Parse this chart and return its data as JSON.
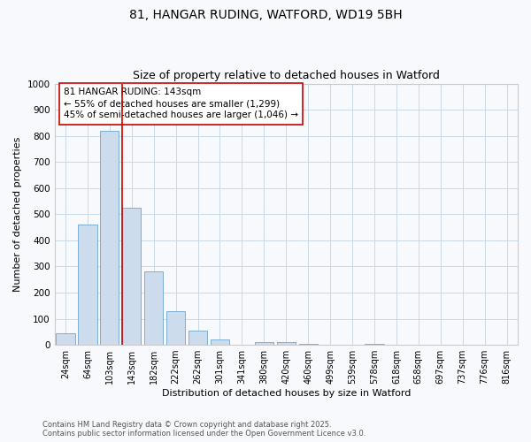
{
  "title_line1": "81, HANGAR RUDING, WATFORD, WD19 5BH",
  "title_line2": "Size of property relative to detached houses in Watford",
  "xlabel": "Distribution of detached houses by size in Watford",
  "ylabel": "Number of detached properties",
  "footnote1": "Contains HM Land Registry data © Crown copyright and database right 2025.",
  "footnote2": "Contains public sector information licensed under the Open Government Licence v3.0.",
  "annotation_line1": "81 HANGAR RUDING: 143sqm",
  "annotation_line2": "← 55% of detached houses are smaller (1,299)",
  "annotation_line3": "45% of semi-detached houses are larger (1,046) →",
  "bar_labels": [
    "24sqm",
    "64sqm",
    "103sqm",
    "143sqm",
    "182sqm",
    "222sqm",
    "262sqm",
    "301sqm",
    "341sqm",
    "380sqm",
    "420sqm",
    "460sqm",
    "499sqm",
    "539sqm",
    "578sqm",
    "618sqm",
    "658sqm",
    "697sqm",
    "737sqm",
    "776sqm",
    "816sqm"
  ],
  "bar_values": [
    45,
    462,
    820,
    525,
    280,
    130,
    55,
    22,
    0,
    10,
    10,
    5,
    0,
    0,
    2,
    0,
    0,
    0,
    0,
    0,
    0
  ],
  "bar_color": "#ccdcec",
  "bar_edge_color": "#7aafd4",
  "vline_color": "#cc0000",
  "vline_index": 3,
  "ylim": [
    0,
    1000
  ],
  "yticks": [
    0,
    100,
    200,
    300,
    400,
    500,
    600,
    700,
    800,
    900,
    1000
  ],
  "bg_color": "#f7f9fc",
  "grid_color": "#c8d8e8",
  "annotation_box_color": "white",
  "annotation_box_edge": "#cc0000",
  "title_fontsize": 10,
  "subtitle_fontsize": 9,
  "axis_label_fontsize": 8,
  "tick_fontsize": 7,
  "annotation_fontsize": 7.5,
  "footnote_fontsize": 6
}
